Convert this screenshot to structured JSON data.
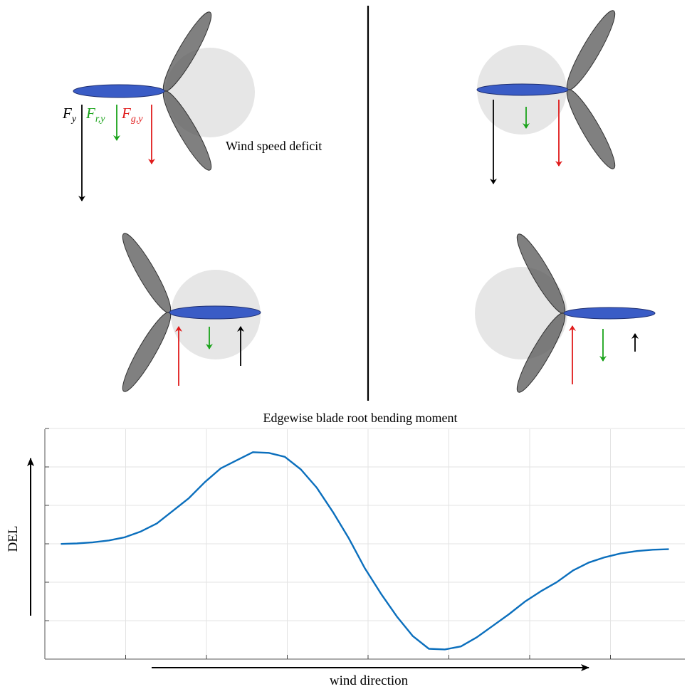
{
  "diagram": {
    "annotation": "Wind speed deficit",
    "force_labels": {
      "total": {
        "base": "F",
        "sub": "y",
        "color": "#000000"
      },
      "rotational": {
        "base": "F",
        "sub": "r,y",
        "color": "#1aa31a"
      },
      "gravity": {
        "base": "F",
        "sub": "g,y",
        "color": "#e01b1b"
      }
    },
    "colors": {
      "blade": "#555555",
      "horizontal_blade": "#3a5cc6",
      "wake": "#e6e6e6",
      "divider": "#000000"
    },
    "panels": [
      {
        "id": "top-left",
        "wake_side": "right",
        "blade_side": "left",
        "forces": [
          "down",
          "down",
          "down"
        ]
      },
      {
        "id": "top-right",
        "wake_side": "left",
        "blade_side": "left",
        "forces": [
          "down",
          "down",
          "down"
        ]
      },
      {
        "id": "bottom-left",
        "wake_side": "right",
        "blade_side": "right",
        "forces": [
          "up",
          "down",
          "up"
        ]
      },
      {
        "id": "bottom-right",
        "wake_side": "left",
        "blade_side": "right",
        "forces": [
          "up",
          "down",
          "up"
        ]
      }
    ]
  },
  "chart_data": {
    "type": "line",
    "title": "Edgewise blade root bending moment",
    "xlabel": "wind direction",
    "ylabel": "DEL",
    "grid": true,
    "tick_labels": false,
    "xlim": [
      0,
      8
    ],
    "ylim": [
      0,
      1
    ],
    "line_color": "#0b6fbd",
    "series": [
      {
        "x": [
          0.2,
          0.4,
          0.6,
          0.8,
          1.0,
          1.2,
          1.4,
          1.6,
          1.8,
          2.0,
          2.2,
          2.4,
          2.6,
          2.8,
          3.0,
          3.2,
          3.4,
          3.6,
          3.8,
          4.0,
          4.2,
          4.4,
          4.6,
          4.8,
          5.0,
          5.2,
          5.4,
          5.6,
          5.8,
          6.0,
          6.2,
          6.4,
          6.6,
          6.8,
          7.0,
          7.2,
          7.4,
          7.6,
          7.8
        ],
        "y": [
          0.501,
          0.503,
          0.508,
          0.516,
          0.53,
          0.555,
          0.59,
          0.645,
          0.7,
          0.77,
          0.83,
          0.865,
          0.9,
          0.897,
          0.88,
          0.825,
          0.745,
          0.64,
          0.525,
          0.395,
          0.285,
          0.185,
          0.1,
          0.045,
          0.042,
          0.055,
          0.095,
          0.145,
          0.195,
          0.25,
          0.295,
          0.335,
          0.385,
          0.42,
          0.443,
          0.46,
          0.47,
          0.476,
          0.478
        ]
      }
    ]
  }
}
